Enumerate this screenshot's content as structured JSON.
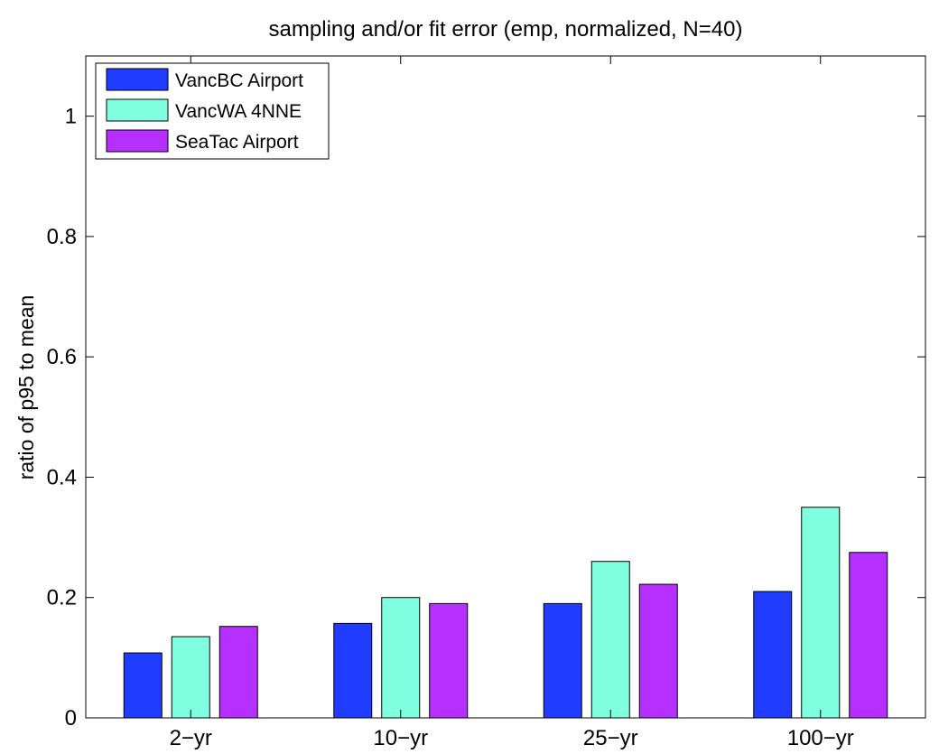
{
  "chart_data": {
    "type": "bar",
    "title": "sampling and/or fit error (emp, normalized, N=40)",
    "xlabel": "",
    "ylabel": "ratio of p95 to mean",
    "categories": [
      "2−yr",
      "10−yr",
      "25−yr",
      "100−yr"
    ],
    "ylim": [
      0,
      1.1
    ],
    "yticks": [
      0,
      0.2,
      0.4,
      0.6,
      0.8,
      1
    ],
    "ytick_labels": [
      "0",
      "0.2",
      "0.4",
      "0.6",
      "0.8",
      "1"
    ],
    "grid": false,
    "legend_position": "top-left",
    "series": [
      {
        "name": "VancBC Airport",
        "color": "#1f3cff",
        "values": [
          0.108,
          0.157,
          0.19,
          0.21
        ]
      },
      {
        "name": "VancWA 4NNE",
        "color": "#7fffdf",
        "values": [
          0.135,
          0.2,
          0.26,
          0.35
        ]
      },
      {
        "name": "SeaTac Airport",
        "color": "#b52fff",
        "values": [
          0.152,
          0.19,
          0.222,
          0.275
        ]
      }
    ]
  }
}
